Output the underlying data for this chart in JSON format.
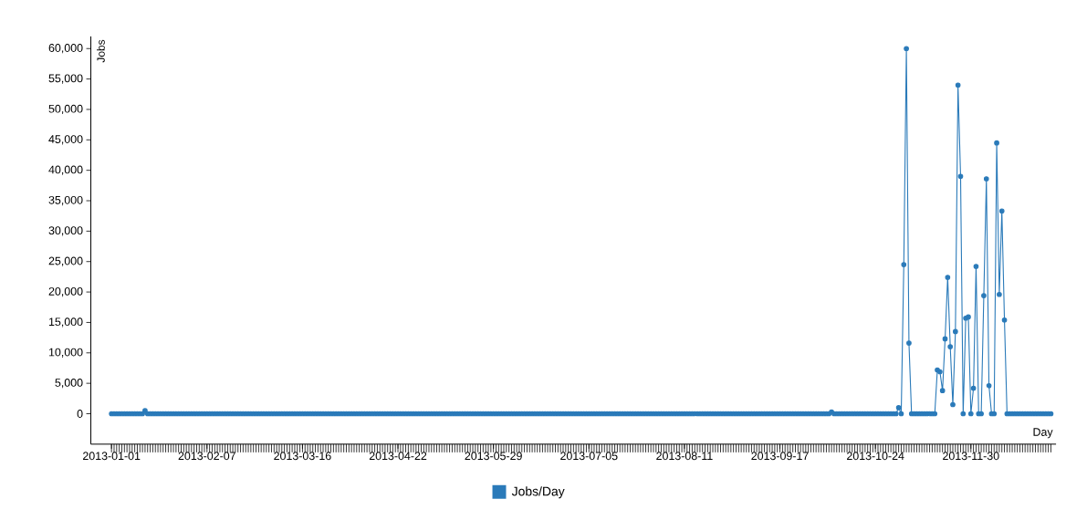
{
  "chart_data": {
    "type": "line",
    "xlabel": "Day",
    "ylabel": "Jobs",
    "legend": "bottom",
    "marker": "circle",
    "x": [
      "2013-01-01",
      "2013-01-02",
      "2013-01-03",
      "2013-01-04",
      "2013-01-05",
      "2013-01-06",
      "2013-01-07",
      "2013-01-08",
      "2013-01-09",
      "2013-01-10",
      "2013-01-11",
      "2013-01-12",
      "2013-01-13",
      "2013-01-14",
      "2013-01-15",
      "2013-01-16",
      "2013-01-17",
      "2013-01-18",
      "2013-01-19",
      "2013-01-20",
      "2013-01-21",
      "2013-01-22",
      "2013-01-23",
      "2013-01-24",
      "2013-01-25",
      "2013-01-26",
      "2013-01-27",
      "2013-01-28",
      "2013-01-29",
      "2013-01-30",
      "2013-01-31",
      "2013-02-01",
      "2013-02-02",
      "2013-02-03",
      "2013-02-04",
      "2013-02-05",
      "2013-02-06",
      "2013-02-07",
      "2013-02-08",
      "2013-02-09",
      "2013-02-10",
      "2013-02-11",
      "2013-02-12",
      "2013-02-13",
      "2013-02-14",
      "2013-02-15",
      "2013-02-16",
      "2013-02-17",
      "2013-02-18",
      "2013-02-19",
      "2013-02-20",
      "2013-02-21",
      "2013-02-22",
      "2013-02-23",
      "2013-02-24",
      "2013-02-25",
      "2013-02-26",
      "2013-02-27",
      "2013-02-28",
      "2013-03-01",
      "2013-03-02",
      "2013-03-03",
      "2013-03-04",
      "2013-03-05",
      "2013-03-06",
      "2013-03-07",
      "2013-03-08",
      "2013-03-09",
      "2013-03-10",
      "2013-03-11",
      "2013-03-12",
      "2013-03-13",
      "2013-03-14",
      "2013-03-15",
      "2013-03-16",
      "2013-03-17",
      "2013-03-18",
      "2013-03-19",
      "2013-03-20",
      "2013-03-21",
      "2013-03-22",
      "2013-03-23",
      "2013-03-24",
      "2013-03-25",
      "2013-03-26",
      "2013-03-27",
      "2013-03-28",
      "2013-03-29",
      "2013-03-30",
      "2013-03-31",
      "2013-04-01",
      "2013-04-02",
      "2013-04-03",
      "2013-04-04",
      "2013-04-05",
      "2013-04-06",
      "2013-04-07",
      "2013-04-08",
      "2013-04-09",
      "2013-04-10",
      "2013-04-11",
      "2013-04-12",
      "2013-04-13",
      "2013-04-14",
      "2013-04-15",
      "2013-04-16",
      "2013-04-17",
      "2013-04-18",
      "2013-04-19",
      "2013-04-20",
      "2013-04-21",
      "2013-04-22",
      "2013-04-23",
      "2013-04-24",
      "2013-04-25",
      "2013-04-26",
      "2013-04-27",
      "2013-04-28",
      "2013-04-29",
      "2013-04-30",
      "2013-05-01",
      "2013-05-02",
      "2013-05-03",
      "2013-05-04",
      "2013-05-05",
      "2013-05-06",
      "2013-05-07",
      "2013-05-08",
      "2013-05-09",
      "2013-05-10",
      "2013-05-11",
      "2013-05-12",
      "2013-05-13",
      "2013-05-14",
      "2013-05-15",
      "2013-05-16",
      "2013-05-17",
      "2013-05-18",
      "2013-05-19",
      "2013-05-20",
      "2013-05-21",
      "2013-05-22",
      "2013-05-23",
      "2013-05-24",
      "2013-05-25",
      "2013-05-26",
      "2013-05-27",
      "2013-05-28",
      "2013-05-29",
      "2013-05-30",
      "2013-05-31",
      "2013-06-01",
      "2013-06-02",
      "2013-06-03",
      "2013-06-04",
      "2013-06-05",
      "2013-06-06",
      "2013-06-07",
      "2013-06-08",
      "2013-06-09",
      "2013-06-10",
      "2013-06-11",
      "2013-06-12",
      "2013-06-13",
      "2013-06-14",
      "2013-06-15",
      "2013-06-16",
      "2013-06-17",
      "2013-06-18",
      "2013-06-19",
      "2013-06-20",
      "2013-06-21",
      "2013-06-22",
      "2013-06-23",
      "2013-06-24",
      "2013-06-25",
      "2013-06-26",
      "2013-06-27",
      "2013-06-28",
      "2013-06-29",
      "2013-06-30",
      "2013-07-01",
      "2013-07-02",
      "2013-07-03",
      "2013-07-04",
      "2013-07-05",
      "2013-07-06",
      "2013-07-07",
      "2013-07-08",
      "2013-07-09",
      "2013-07-10",
      "2013-07-11",
      "2013-07-12",
      "2013-07-13",
      "2013-07-14",
      "2013-07-15",
      "2013-07-16",
      "2013-07-17",
      "2013-07-18",
      "2013-07-19",
      "2013-07-20",
      "2013-07-21",
      "2013-07-22",
      "2013-07-23",
      "2013-07-24",
      "2013-07-25",
      "2013-07-26",
      "2013-07-27",
      "2013-07-28",
      "2013-07-29",
      "2013-07-30",
      "2013-07-31",
      "2013-08-01",
      "2013-08-02",
      "2013-08-03",
      "2013-08-04",
      "2013-08-05",
      "2013-08-06",
      "2013-08-07",
      "2013-08-08",
      "2013-08-09",
      "2013-08-10",
      "2013-08-11",
      "2013-08-12",
      "2013-08-13",
      "2013-08-14",
      "2013-08-15",
      "2013-08-16",
      "2013-08-17",
      "2013-08-18",
      "2013-08-19",
      "2013-08-20",
      "2013-08-21",
      "2013-08-22",
      "2013-08-23",
      "2013-08-24",
      "2013-08-25",
      "2013-08-26",
      "2013-08-27",
      "2013-08-28",
      "2013-08-29",
      "2013-08-30",
      "2013-08-31",
      "2013-09-01",
      "2013-09-02",
      "2013-09-03",
      "2013-09-04",
      "2013-09-05",
      "2013-09-06",
      "2013-09-07",
      "2013-09-08",
      "2013-09-09",
      "2013-09-10",
      "2013-09-11",
      "2013-09-12",
      "2013-09-13",
      "2013-09-14",
      "2013-09-15",
      "2013-09-16",
      "2013-09-17",
      "2013-09-18",
      "2013-09-19",
      "2013-09-20",
      "2013-09-21",
      "2013-09-22",
      "2013-09-23",
      "2013-09-24",
      "2013-09-25",
      "2013-09-26",
      "2013-09-27",
      "2013-09-28",
      "2013-09-29",
      "2013-09-30",
      "2013-10-01",
      "2013-10-02",
      "2013-10-03",
      "2013-10-04",
      "2013-10-05",
      "2013-10-06",
      "2013-10-07",
      "2013-10-08",
      "2013-10-09",
      "2013-10-10",
      "2013-10-11",
      "2013-10-12",
      "2013-10-13",
      "2013-10-14",
      "2013-10-15",
      "2013-10-16",
      "2013-10-17",
      "2013-10-18",
      "2013-10-19",
      "2013-10-20",
      "2013-10-21",
      "2013-10-22",
      "2013-10-23",
      "2013-10-24",
      "2013-10-25",
      "2013-10-26",
      "2013-10-27",
      "2013-10-28",
      "2013-10-29",
      "2013-10-30",
      "2013-10-31",
      "2013-11-01",
      "2013-11-02",
      "2013-11-03",
      "2013-11-04",
      "2013-11-05",
      "2013-11-06",
      "2013-11-07",
      "2013-11-08",
      "2013-11-09",
      "2013-11-10",
      "2013-11-11",
      "2013-11-12",
      "2013-11-13",
      "2013-11-14",
      "2013-11-15",
      "2013-11-16",
      "2013-11-17",
      "2013-11-18",
      "2013-11-19",
      "2013-11-20",
      "2013-11-21",
      "2013-11-22",
      "2013-11-23",
      "2013-11-24",
      "2013-11-25",
      "2013-11-26",
      "2013-11-27",
      "2013-11-28",
      "2013-11-29",
      "2013-11-30",
      "2013-12-01",
      "2013-12-02",
      "2013-12-03",
      "2013-12-04",
      "2013-12-05",
      "2013-12-06",
      "2013-12-07",
      "2013-12-08",
      "2013-12-09",
      "2013-12-10",
      "2013-12-11",
      "2013-12-12",
      "2013-12-13",
      "2013-12-14",
      "2013-12-15",
      "2013-12-16",
      "2013-12-17",
      "2013-12-18",
      "2013-12-19",
      "2013-12-20",
      "2013-12-21",
      "2013-12-22",
      "2013-12-23",
      "2013-12-24",
      "2013-12-25",
      "2013-12-26",
      "2013-12-27",
      "2013-12-28",
      "2013-12-29",
      "2013-12-30",
      "2013-12-31"
    ],
    "series": [
      {
        "name": "Jobs/Day",
        "color": "#2a7ab9",
        "values": [
          0,
          0,
          0,
          0,
          0,
          0,
          0,
          0,
          0,
          0,
          0,
          0,
          0,
          500,
          0,
          0,
          0,
          0,
          0,
          0,
          0,
          0,
          0,
          0,
          0,
          0,
          0,
          0,
          0,
          0,
          0,
          0,
          0,
          0,
          0,
          0,
          0,
          0,
          0,
          0,
          0,
          0,
          0,
          0,
          0,
          0,
          0,
          0,
          0,
          0,
          0,
          0,
          0,
          0,
          0,
          0,
          0,
          0,
          0,
          0,
          0,
          0,
          0,
          0,
          0,
          0,
          0,
          0,
          0,
          0,
          0,
          0,
          0,
          0,
          0,
          0,
          0,
          0,
          0,
          0,
          0,
          0,
          0,
          0,
          0,
          0,
          0,
          0,
          0,
          0,
          0,
          0,
          0,
          0,
          0,
          0,
          0,
          0,
          0,
          0,
          0,
          0,
          0,
          0,
          0,
          0,
          0,
          0,
          0,
          0,
          0,
          0,
          0,
          0,
          0,
          0,
          0,
          0,
          0,
          0,
          0,
          0,
          0,
          0,
          0,
          0,
          0,
          0,
          0,
          0,
          0,
          0,
          0,
          0,
          0,
          0,
          0,
          0,
          0,
          0,
          0,
          0,
          0,
          0,
          0,
          0,
          0,
          0,
          0,
          0,
          0,
          0,
          0,
          0,
          0,
          0,
          0,
          0,
          0,
          0,
          0,
          0,
          0,
          0,
          0,
          0,
          0,
          0,
          0,
          0,
          0,
          0,
          0,
          0,
          0,
          0,
          0,
          0,
          0,
          0,
          0,
          0,
          0,
          0,
          0,
          0,
          0,
          0,
          0,
          0,
          0,
          0,
          0,
          0,
          0,
          0,
          0,
          0,
          0,
          0,
          0,
          0,
          0,
          0,
          0,
          0,
          0,
          0,
          0,
          0,
          0,
          0,
          0,
          0,
          0,
          0,
          0,
          0,
          0,
          0,
          0,
          0,
          0,
          0,
          0,
          0,
          0,
          0,
          0,
          0,
          0,
          0,
          0,
          0,
          0,
          0,
          0,
          0,
          0,
          0,
          0,
          0,
          0,
          0,
          0,
          0,
          0,
          0,
          0,
          0,
          0,
          0,
          0,
          0,
          0,
          0,
          0,
          0,
          0,
          0,
          0,
          0,
          0,
          0,
          0,
          0,
          0,
          0,
          0,
          0,
          0,
          0,
          0,
          0,
          0,
          0,
          0,
          0,
          0,
          300,
          0,
          0,
          0,
          0,
          0,
          0,
          0,
          0,
          0,
          0,
          0,
          0,
          0,
          0,
          0,
          0,
          0,
          0,
          0,
          0,
          0,
          0,
          0,
          0,
          0,
          1000,
          0,
          24500,
          60000,
          11600,
          0,
          0,
          0,
          0,
          0,
          0,
          0,
          0,
          0,
          0,
          7200,
          6900,
          3800,
          12300,
          22400,
          11000,
          1500,
          13500,
          54000,
          39000,
          0,
          15700,
          15900,
          0,
          4200,
          24200,
          0,
          0,
          19400,
          38600,
          4600,
          0,
          0,
          44500,
          19600,
          33300,
          15400,
          0,
          0,
          0,
          0,
          0,
          0,
          0,
          0,
          0,
          0,
          0,
          0,
          0,
          0,
          0,
          0,
          0,
          0
        ]
      }
    ],
    "xlim": [
      "2012-12-24",
      "2014-01-02"
    ],
    "xticks": [
      "2013-01-01",
      "2013-02-07",
      "2013-03-16",
      "2013-04-22",
      "2013-05-29",
      "2013-07-05",
      "2013-08-11",
      "2013-09-17",
      "2013-10-24",
      "2013-11-30"
    ],
    "ylim": [
      -5000,
      62000
    ],
    "yticks": [
      0,
      {
        "value": 5000,
        "label": "5,000"
      },
      {
        "value": 10000,
        "label": "10,000"
      },
      {
        "value": 15000,
        "label": "15,000"
      },
      {
        "value": 20000,
        "label": "20,000"
      },
      {
        "value": 25000,
        "label": "25,000"
      },
      {
        "value": 30000,
        "label": "30,000"
      },
      {
        "value": 35000,
        "label": "35,000"
      },
      {
        "value": 40000,
        "label": "40,000"
      },
      {
        "value": 45000,
        "label": "45,000"
      },
      {
        "value": 50000,
        "label": "50,000"
      },
      {
        "value": 55000,
        "label": "55,000"
      },
      {
        "value": 60000,
        "label": "60,000"
      }
    ]
  }
}
